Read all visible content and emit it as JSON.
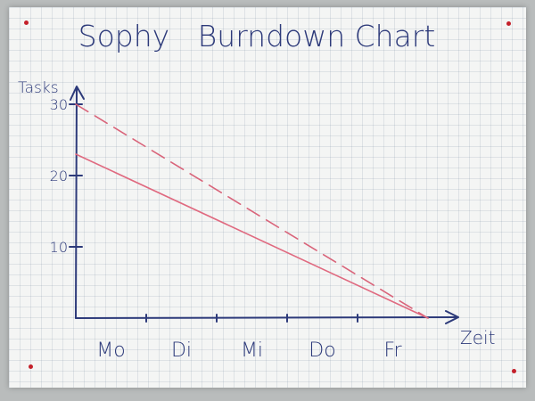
{
  "chart_data": {
    "type": "line",
    "title": "Sophy   Burndown Chart",
    "xlabel": "Zeit",
    "ylabel": "Tasks",
    "categories": [
      "Mo",
      "Di",
      "Mi",
      "Do",
      "Fr"
    ],
    "yticks": [
      "10",
      "20",
      "30"
    ],
    "ylim": [
      0,
      30
    ],
    "x_range": [
      0,
      5
    ],
    "series": [
      {
        "style": "dashed",
        "color": "#d9647a",
        "x": [
          0,
          5
        ],
        "y": [
          30,
          0
        ]
      },
      {
        "style": "solid",
        "color": "#e06a80",
        "x": [
          0,
          5
        ],
        "y": [
          23,
          0
        ]
      }
    ],
    "grid": true,
    "legend": "none"
  },
  "colors": {
    "ink": "#2d3a7a",
    "marker_red": "#e06a80",
    "paper": "#f4f5f4",
    "pin": "#c4202a"
  }
}
